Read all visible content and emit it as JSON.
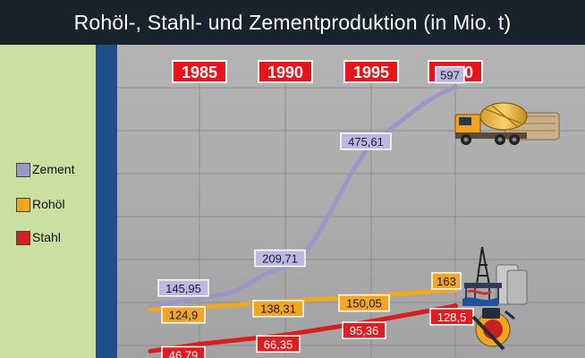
{
  "chart_data": {
    "type": "line",
    "title": "Rohöl-, Stahl- und Zementproduktion (in Mio. t)",
    "categories": [
      "1985",
      "1990",
      "1995",
      "2000"
    ],
    "ylim": [
      40,
      600
    ],
    "grid": true,
    "legend_position": "left",
    "series": [
      {
        "name": "Zement",
        "color": "#9b97c8",
        "label_bg": "#bcb8e0",
        "values": [
          145.95,
          209.71,
          475.61,
          597
        ],
        "labels": [
          "145,95",
          "209,71",
          "475,61",
          "597"
        ]
      },
      {
        "name": "Rohöl",
        "color": "#f2a61d",
        "label_bg": "#f4a623",
        "values": [
          124.9,
          138.31,
          150.05,
          163
        ],
        "labels": [
          "124,9",
          "138,31",
          "150,05",
          "163"
        ]
      },
      {
        "name": "Stahl",
        "color": "#d81f1f",
        "label_bg": "#dd1f24",
        "values": [
          46.79,
          66.35,
          95.36,
          128.5
        ],
        "labels": [
          "46,79",
          "66,35",
          "95,36",
          "128,5"
        ]
      }
    ]
  },
  "colors": {
    "title_bg": "#17232d",
    "legend_bg": "#c9e0a0",
    "divider": "#1f4e8f",
    "plot_bg": "#adadad",
    "year_box_bg": "#e8141a"
  },
  "icons": [
    "cement-truck-icon",
    "oil-rig-icon",
    "steel-worker-icon"
  ]
}
